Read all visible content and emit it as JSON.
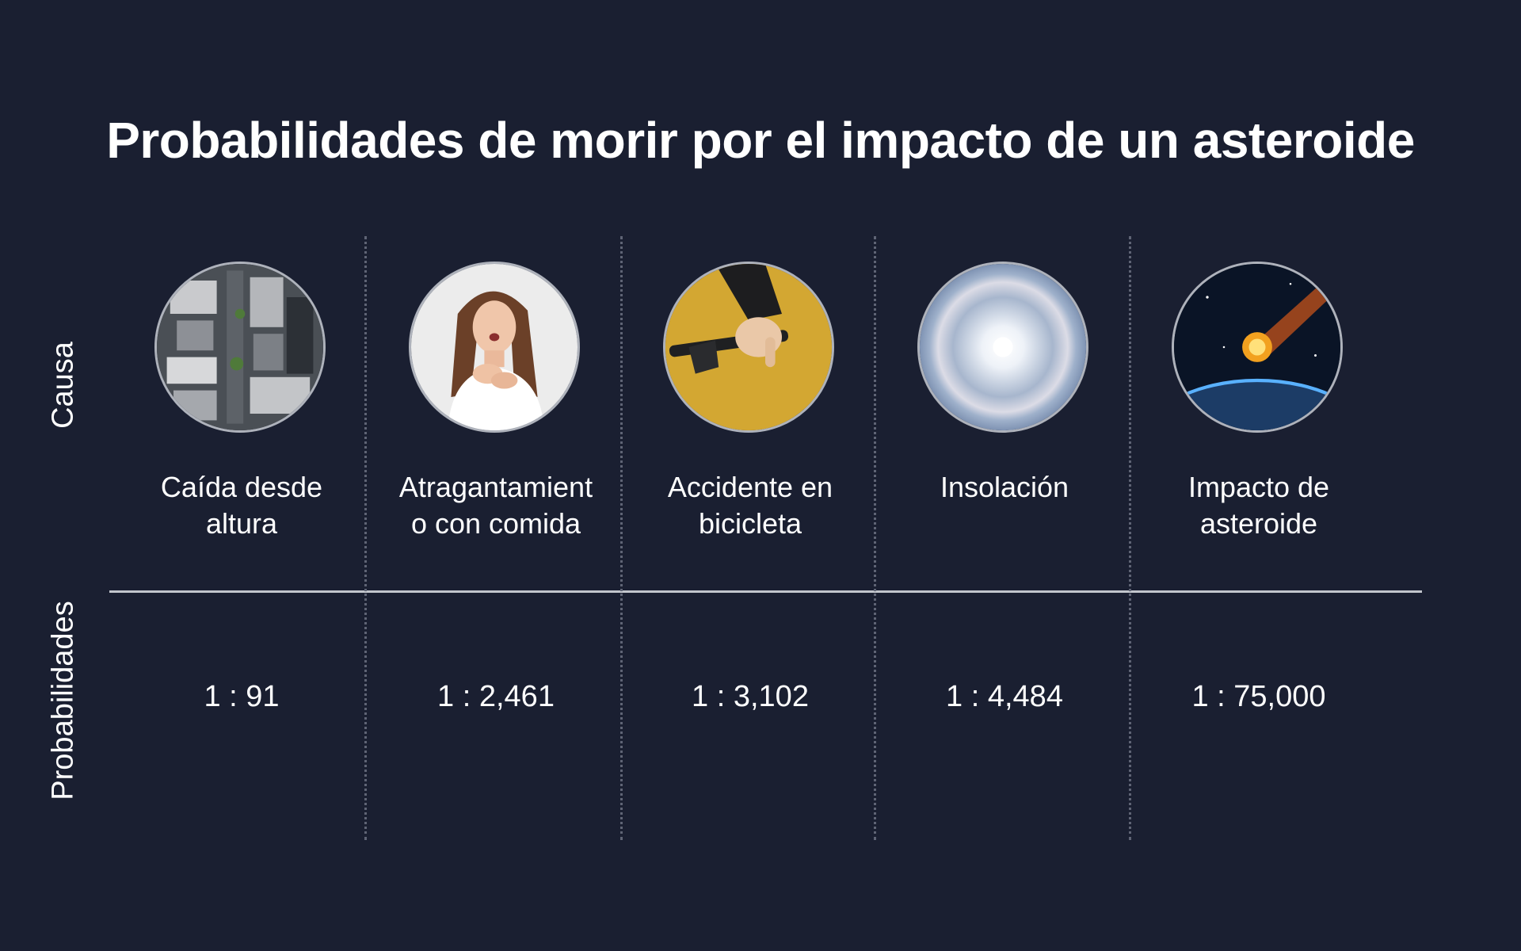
{
  "title": "Probabilidades de morir por el impacto de un asteroide",
  "row_labels": {
    "cause": "Causa",
    "odds": "Probabilidades"
  },
  "columns": [
    {
      "icon": "city-aerial-photo",
      "cause_line1": "Caída desde",
      "cause_line2": "altura",
      "odds": "1 : 91"
    },
    {
      "icon": "choking-woman-photo",
      "cause_line1": "Atragantamient",
      "cause_line2": "o con comida",
      "odds": "1 : 2,461"
    },
    {
      "icon": "bicycle-handlebar-photo",
      "cause_line1": "Accidente en",
      "cause_line2": "bicicleta",
      "odds": "1 : 3,102"
    },
    {
      "icon": "sun-halo-photo",
      "cause_line1": "Insolación",
      "cause_line2": "",
      "odds": "1 : 4,484"
    },
    {
      "icon": "asteroid-earth-photo",
      "cause_line1": "Impacto de",
      "cause_line2": "asteroide",
      "odds": "1 : 75,000"
    }
  ],
  "colors": {
    "background": "#1a1f31",
    "text": "#ffffff",
    "separator": "#c2c5cc"
  }
}
